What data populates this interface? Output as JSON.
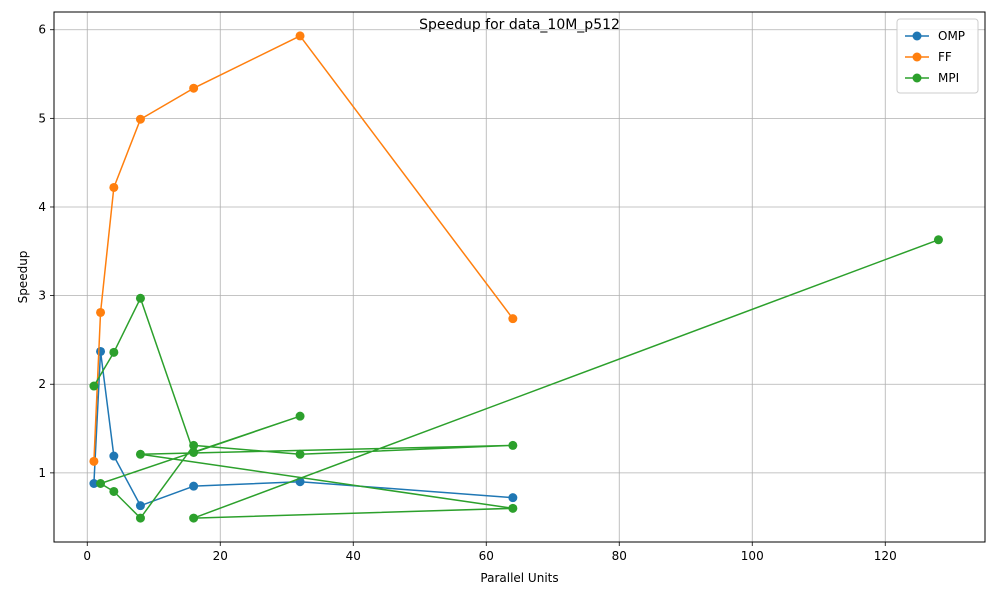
{
  "chart_data": {
    "type": "line",
    "title": "Speedup for data_10M_p512",
    "xlabel": "Parallel Units",
    "ylabel": "Speedup",
    "xlim": [
      -5,
      135
    ],
    "ylim": [
      0.22,
      6.2
    ],
    "xticks": [
      0,
      20,
      40,
      60,
      80,
      100,
      120
    ],
    "yticks": [
      1,
      2,
      3,
      4,
      5,
      6
    ],
    "grid": true,
    "legend": "top-right",
    "series": [
      {
        "name": "OMP",
        "color": "#1f77b4",
        "x": [
          1,
          2,
          4,
          8,
          16,
          32,
          64
        ],
        "y": [
          0.88,
          2.37,
          1.19,
          0.63,
          0.85,
          0.9,
          0.72
        ]
      },
      {
        "name": "FF",
        "color": "#ff7f0e",
        "x": [
          1,
          2,
          4,
          8,
          16,
          32,
          64
        ],
        "y": [
          1.13,
          2.81,
          4.22,
          4.99,
          5.34,
          5.93,
          2.74
        ]
      },
      {
        "name": "MPI",
        "color": "#2ca02c",
        "x": [
          1,
          4,
          8,
          16,
          32,
          2,
          4,
          8,
          16,
          32,
          64,
          8,
          64,
          16,
          128
        ],
        "y": [
          1.98,
          2.36,
          2.97,
          1.23,
          1.64,
          0.88,
          0.79,
          0.49,
          1.31,
          1.21,
          1.31,
          1.21,
          0.6,
          0.49,
          3.63
        ]
      }
    ]
  }
}
